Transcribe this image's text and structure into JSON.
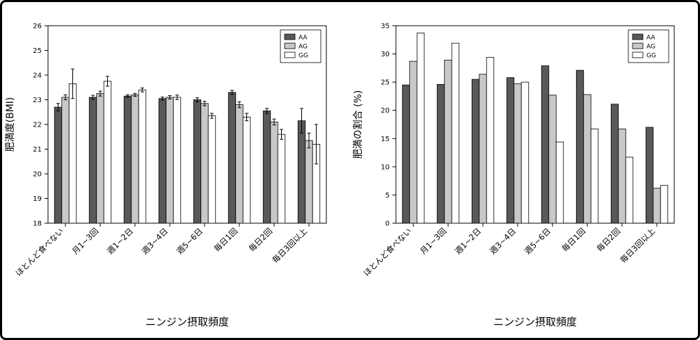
{
  "figure": {
    "background": "#ffffff",
    "border_color": "#000000"
  },
  "chart_data": [
    {
      "type": "bar",
      "title": "",
      "xlabel": "ニンジン摂取頻度",
      "ylabel": "肥満度(BMI)",
      "ylim": [
        18,
        26
      ],
      "yticks": [
        18,
        19,
        20,
        21,
        22,
        23,
        24,
        25,
        26
      ],
      "grid": false,
      "legend_position": "top-right",
      "categories": [
        "ほとんど食べない",
        "月1~3回",
        "週1~2日",
        "週3~4日",
        "週5~6日",
        "毎日1回",
        "毎日2回",
        "毎日3回以上"
      ],
      "series": [
        {
          "name": "AA",
          "color": "#595959",
          "edge_color": "#000000",
          "values": [
            22.7,
            23.1,
            23.15,
            23.05,
            23.0,
            23.3,
            22.55,
            22.15
          ],
          "errors": [
            0.15,
            0.08,
            0.05,
            0.06,
            0.08,
            0.08,
            0.1,
            0.5
          ]
        },
        {
          "name": "AG",
          "color": "#c8c8c8",
          "edge_color": "#000000",
          "values": [
            23.1,
            23.25,
            23.2,
            23.1,
            22.85,
            22.8,
            22.1,
            21.35
          ],
          "errors": [
            0.1,
            0.1,
            0.06,
            0.07,
            0.09,
            0.12,
            0.12,
            0.3
          ]
        },
        {
          "name": "GG",
          "color": "#ffffff",
          "edge_color": "#000000",
          "values": [
            23.65,
            23.75,
            23.4,
            23.1,
            22.35,
            22.3,
            21.6,
            21.2
          ],
          "errors": [
            0.6,
            0.2,
            0.08,
            0.09,
            0.1,
            0.15,
            0.2,
            0.8
          ]
        }
      ]
    },
    {
      "type": "bar",
      "title": "",
      "xlabel": "ニンジン摂取頻度",
      "ylabel": "肥満の割合 (%)",
      "ylim": [
        0,
        35
      ],
      "yticks": [
        0,
        5,
        10,
        15,
        20,
        25,
        30,
        35
      ],
      "grid": false,
      "legend_position": "top-right",
      "categories": [
        "ほとんど食べない",
        "月1~3回",
        "週1~2日",
        "週3~4日",
        "週5~6日",
        "毎日1回",
        "毎日2回",
        "毎日3回以上"
      ],
      "series": [
        {
          "name": "AA",
          "color": "#595959",
          "edge_color": "#000000",
          "values": [
            24.5,
            24.6,
            25.5,
            25.8,
            27.9,
            27.1,
            21.1,
            17.0
          ]
        },
        {
          "name": "AG",
          "color": "#c8c8c8",
          "edge_color": "#000000",
          "values": [
            28.7,
            28.9,
            26.4,
            24.7,
            22.7,
            22.8,
            16.7,
            6.2
          ]
        },
        {
          "name": "GG",
          "color": "#ffffff",
          "edge_color": "#000000",
          "values": [
            33.7,
            31.9,
            29.4,
            25.0,
            14.4,
            16.7,
            11.7,
            6.7
          ]
        }
      ]
    }
  ]
}
